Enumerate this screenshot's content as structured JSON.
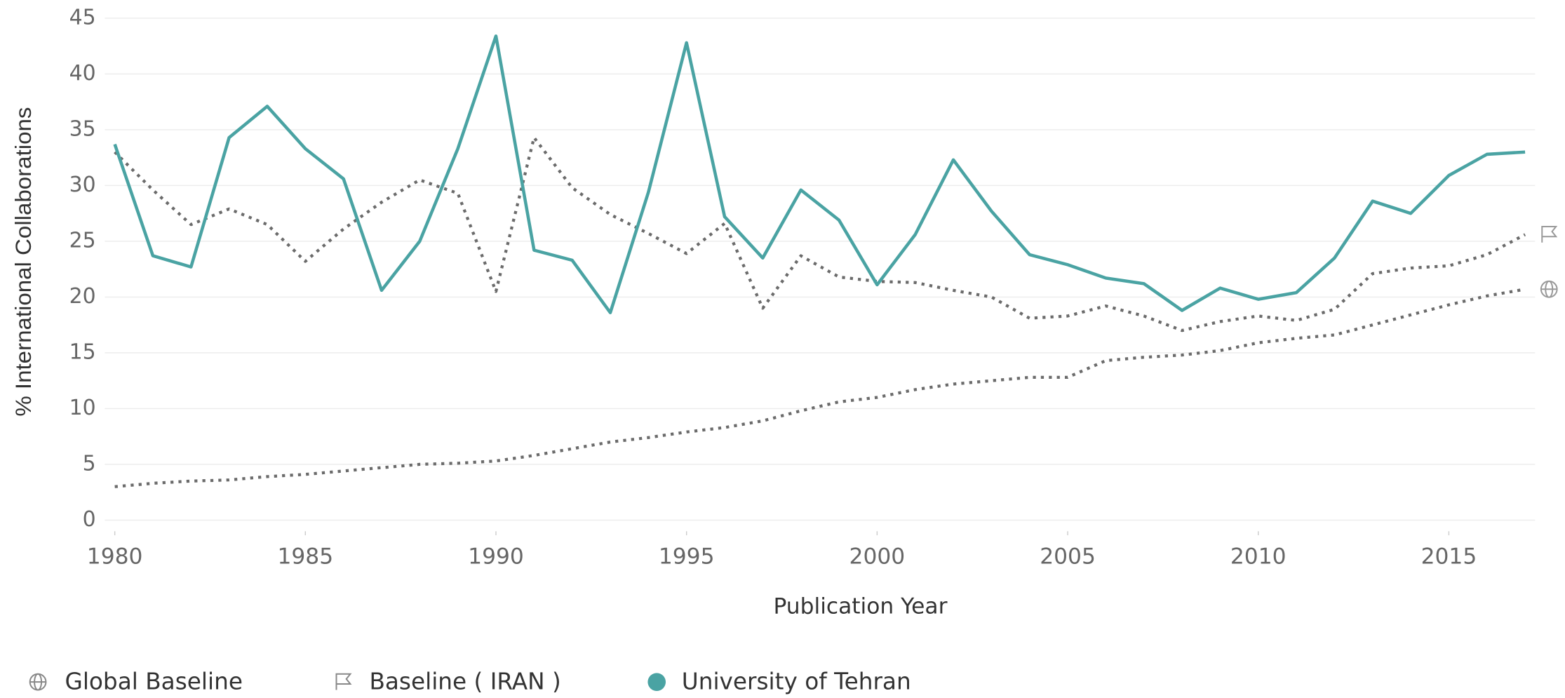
{
  "chart_data": {
    "type": "line",
    "x_label": "Publication Year",
    "y_label": "% International Collaborations",
    "x": [
      1980,
      1981,
      1982,
      1983,
      1984,
      1985,
      1986,
      1987,
      1988,
      1989,
      1990,
      1991,
      1992,
      1993,
      1994,
      1995,
      1996,
      1997,
      1998,
      1999,
      2000,
      2001,
      2002,
      2003,
      2004,
      2005,
      2006,
      2007,
      2008,
      2009,
      2010,
      2011,
      2012,
      2013,
      2014,
      2015,
      2016,
      2017
    ],
    "series": [
      {
        "name": "Global Baseline",
        "color": "#6b6b6b",
        "style": "dotted",
        "values": [
          3.0,
          3.3,
          3.5,
          3.6,
          3.9,
          4.1,
          4.4,
          4.7,
          5.0,
          5.1,
          5.3,
          5.8,
          6.4,
          7.0,
          7.4,
          7.9,
          8.3,
          8.9,
          9.8,
          10.6,
          11.0,
          11.7,
          12.2,
          12.5,
          12.8,
          12.8,
          14.3,
          14.6,
          14.8,
          15.2,
          15.9,
          16.3,
          16.6,
          17.5,
          18.4,
          19.3,
          20.1,
          20.7
        ]
      },
      {
        "name": "Baseline ( IRAN )",
        "color": "#6b6b6b",
        "style": "dotted",
        "values": [
          33.0,
          29.6,
          26.5,
          27.9,
          26.5,
          23.2,
          26.1,
          28.5,
          30.5,
          29.3,
          20.5,
          34.3,
          29.8,
          27.4,
          25.7,
          23.9,
          26.6,
          19.0,
          23.7,
          21.8,
          21.4,
          21.3,
          20.6,
          20.0,
          18.1,
          18.3,
          19.2,
          18.3,
          17.0,
          17.8,
          18.3,
          17.9,
          18.9,
          22.1,
          22.6,
          22.8,
          23.8,
          25.6
        ]
      },
      {
        "name": "University of Tehran",
        "color": "#4aa3a3",
        "style": "solid",
        "values": [
          33.7,
          23.7,
          22.7,
          34.3,
          37.1,
          33.3,
          30.6,
          20.6,
          25.0,
          33.3,
          43.4,
          24.2,
          23.3,
          18.6,
          29.4,
          42.8,
          27.2,
          23.5,
          29.6,
          26.9,
          21.1,
          25.6,
          32.3,
          27.7,
          23.8,
          22.9,
          21.7,
          21.2,
          18.8,
          20.8,
          19.8,
          20.4,
          23.5,
          28.6,
          27.5,
          30.9,
          32.8,
          33.0
        ]
      }
    ],
    "xlim": [
      1980,
      2017
    ],
    "xticks": [
      1980,
      1985,
      1990,
      1995,
      2000,
      2005,
      2010,
      2015
    ],
    "ylim": [
      -1,
      45
    ],
    "yticks": [
      0,
      5,
      10,
      15,
      20,
      25,
      30,
      35,
      40,
      45
    ],
    "grid": true,
    "legend": "bottom"
  }
}
